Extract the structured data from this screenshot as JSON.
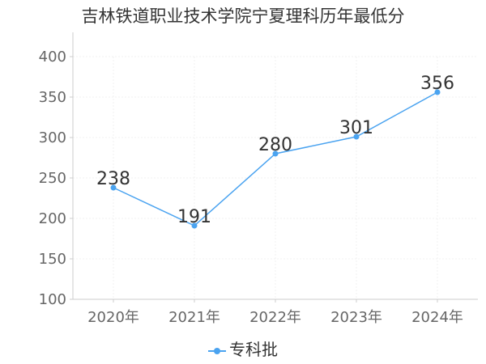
{
  "chart_data": {
    "type": "line",
    "title": "吉林铁道职业技术学院宁夏理科历年最低分",
    "categories": [
      "2020年",
      "2021年",
      "2022年",
      "2023年",
      "2024年"
    ],
    "series": [
      {
        "name": "专科批",
        "values": [
          238,
          191,
          280,
          301,
          356
        ]
      }
    ],
    "ylim": [
      100,
      400
    ],
    "yticks": [
      100,
      150,
      200,
      250,
      300,
      350,
      400
    ],
    "grid": true,
    "legend": "bottom",
    "color": "#4aa3f0"
  }
}
